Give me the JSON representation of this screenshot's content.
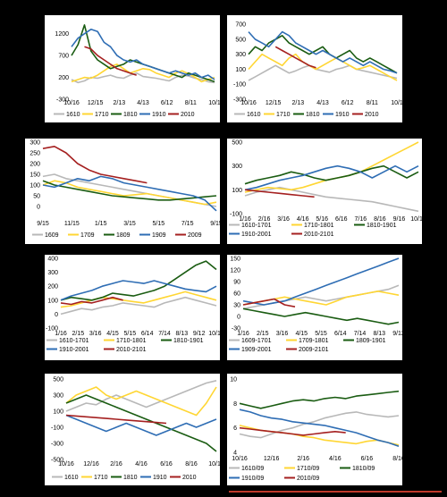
{
  "colors": {
    "gray": "#b8b8b8",
    "yellow": "#ffd633",
    "green": "#1a5c12",
    "blue": "#2e6db4",
    "red": "#a52020"
  },
  "chart_data": [
    {
      "type": "line",
      "ylim": [
        -300,
        1500
      ],
      "yticks": [
        "-300",
        "200",
        "700",
        "1200"
      ],
      "xticks": [
        "10/16",
        "12/15",
        "2/13",
        "4/13",
        "6/12",
        "8/11",
        "10/1"
      ],
      "series": [
        {
          "name": "1610",
          "color": "gray",
          "values": [
            150,
            80,
            120,
            200,
            180,
            220,
            250,
            200,
            180,
            250,
            300,
            220,
            200,
            180,
            150,
            120,
            200,
            250,
            230,
            180,
            150,
            100,
            80
          ]
        },
        {
          "name": "1710",
          "color": "yellow",
          "values": [
            100,
            150,
            200,
            180,
            250,
            350,
            450,
            500,
            400,
            300,
            350,
            400,
            380,
            300,
            250,
            200,
            300,
            350,
            280,
            200,
            100,
            150,
            200
          ]
        },
        {
          "name": "1810",
          "color": "green",
          "values": [
            700,
            950,
            1400,
            800,
            600,
            500,
            400,
            450,
            500,
            600,
            550,
            500,
            450,
            400,
            350,
            300,
            250,
            200,
            300,
            250,
            200,
            150,
            100
          ]
        },
        {
          "name": "1910",
          "color": "blue",
          "values": [
            900,
            1100,
            1200,
            1300,
            1250,
            1000,
            900,
            700,
            600,
            550,
            600,
            500,
            450,
            400,
            350,
            300,
            350,
            300,
            250,
            300,
            200,
            250,
            150
          ]
        },
        {
          "name": "2010",
          "color": "red",
          "values": [
            null,
            null,
            900,
            850,
            700,
            600,
            500,
            400,
            350,
            300,
            250,
            null,
            null,
            null,
            null,
            null,
            null,
            null,
            null,
            null,
            null,
            null,
            null
          ]
        }
      ]
    },
    {
      "type": "line",
      "ylim": [
        -300,
        750
      ],
      "yticks": [
        "-300",
        "-100",
        "100",
        "300",
        "500",
        "700"
      ],
      "xticks": [
        "10/16",
        "12/15",
        "2/13",
        "4/13",
        "6/12",
        "8/11",
        "10/1"
      ],
      "series": [
        {
          "name": "1610",
          "color": "gray",
          "values": [
            -50,
            0,
            50,
            100,
            150,
            100,
            50,
            80,
            120,
            150,
            100,
            80,
            60,
            100,
            120,
            150,
            100,
            80,
            60,
            40,
            20,
            0,
            -20
          ]
        },
        {
          "name": "1710",
          "color": "yellow",
          "values": [
            100,
            200,
            300,
            250,
            200,
            150,
            250,
            300,
            200,
            150,
            100,
            150,
            200,
            250,
            200,
            150,
            100,
            120,
            150,
            100,
            50,
            0,
            -50
          ]
        },
        {
          "name": "1810",
          "color": "green",
          "values": [
            300,
            400,
            350,
            450,
            500,
            550,
            450,
            400,
            350,
            300,
            350,
            400,
            300,
            250,
            300,
            350,
            250,
            200,
            250,
            200,
            150,
            100,
            50
          ]
        },
        {
          "name": "1910",
          "color": "blue",
          "values": [
            600,
            500,
            450,
            400,
            500,
            600,
            550,
            450,
            400,
            350,
            300,
            350,
            300,
            250,
            200,
            250,
            200,
            150,
            200,
            150,
            100,
            80,
            50
          ]
        },
        {
          "name": "2010",
          "color": "red",
          "values": [
            null,
            null,
            null,
            null,
            400,
            350,
            300,
            250,
            200,
            150,
            120,
            null,
            null,
            null,
            null,
            null,
            null,
            null,
            null,
            null,
            null,
            null,
            null
          ]
        }
      ]
    },
    {
      "type": "line",
      "ylim": [
        -50,
        300
      ],
      "yticks": [
        "0",
        "50",
        "100",
        "150",
        "200",
        "250",
        "300"
      ],
      "xticks": [
        "9/15",
        "11/15",
        "1/15",
        "3/15",
        "5/15",
        "7/15",
        "9/15"
      ],
      "series": [
        {
          "name": "1609",
          "color": "gray",
          "values": [
            140,
            150,
            130,
            120,
            110,
            100,
            90,
            80,
            70,
            60,
            50,
            40,
            30,
            20,
            10,
            0
          ]
        },
        {
          "name": "1709",
          "color": "yellow",
          "values": [
            100,
            120,
            110,
            90,
            80,
            70,
            60,
            50,
            55,
            60,
            50,
            40,
            30,
            20,
            10,
            20
          ]
        },
        {
          "name": "1809",
          "color": "green",
          "values": [
            120,
            100,
            90,
            80,
            70,
            60,
            50,
            45,
            40,
            35,
            30,
            30,
            35,
            40,
            45,
            50
          ]
        },
        {
          "name": "1909",
          "color": "blue",
          "values": [
            100,
            90,
            110,
            130,
            120,
            140,
            130,
            110,
            100,
            90,
            80,
            70,
            60,
            50,
            30,
            -20
          ]
        },
        {
          "name": "2009",
          "color": "red",
          "values": [
            270,
            280,
            250,
            200,
            170,
            150,
            140,
            130,
            120,
            110,
            null,
            null,
            null,
            null,
            null,
            null
          ]
        }
      ]
    },
    {
      "type": "line",
      "ylim": [
        -100,
        500
      ],
      "yticks": [
        "-100",
        "100",
        "300",
        "500"
      ],
      "xticks": [
        "1/16",
        "2/16",
        "3/16",
        "4/16",
        "5/16",
        "6/16",
        "7/16",
        "8/16",
        "9/16",
        "10/16"
      ],
      "series": [
        {
          "name": "1610-1701",
          "color": "gray",
          "values": [
            50,
            80,
            100,
            120,
            100,
            80,
            60,
            40,
            30,
            20,
            10,
            0,
            -20,
            -40,
            -60,
            -80
          ]
        },
        {
          "name": "1710-1801",
          "color": "yellow",
          "values": [
            80,
            100,
            120,
            110,
            100,
            120,
            150,
            180,
            200,
            220,
            250,
            300,
            350,
            400,
            450,
            500
          ]
        },
        {
          "name": "1810-1901",
          "color": "green",
          "values": [
            150,
            180,
            200,
            220,
            250,
            230,
            200,
            180,
            200,
            220,
            250,
            280,
            300,
            250,
            200,
            250
          ]
        },
        {
          "name": "1910-2001",
          "color": "blue",
          "values": [
            100,
            120,
            150,
            180,
            200,
            220,
            250,
            280,
            300,
            280,
            250,
            200,
            250,
            300,
            250,
            300
          ]
        },
        {
          "name": "2010-2101",
          "color": "red",
          "values": [
            100,
            90,
            80,
            70,
            60,
            50,
            40,
            null,
            null,
            null,
            null,
            null,
            null,
            null,
            null,
            null
          ]
        }
      ]
    },
    {
      "type": "line",
      "ylim": [
        -100,
        400
      ],
      "yticks": [
        "-100",
        "0",
        "100",
        "200",
        "300",
        "400"
      ],
      "xticks": [
        "1/16",
        "2/15",
        "3/16",
        "4/15",
        "5/15",
        "6/14",
        "7/14",
        "8/13",
        "9/12",
        "10/12"
      ],
      "series": [
        {
          "name": "1610-1701",
          "color": "gray",
          "values": [
            0,
            20,
            40,
            30,
            50,
            60,
            80,
            70,
            60,
            50,
            80,
            100,
            120,
            100,
            80,
            60
          ]
        },
        {
          "name": "1710-1801",
          "color": "yellow",
          "values": [
            50,
            60,
            80,
            100,
            120,
            110,
            100,
            90,
            80,
            100,
            120,
            140,
            160,
            140,
            120,
            100
          ]
        },
        {
          "name": "1810-1901",
          "color": "green",
          "values": [
            100,
            120,
            110,
            100,
            120,
            150,
            140,
            130,
            150,
            170,
            200,
            250,
            300,
            350,
            380,
            320
          ]
        },
        {
          "name": "1910-2001",
          "color": "blue",
          "values": [
            100,
            130,
            150,
            170,
            200,
            220,
            240,
            230,
            220,
            240,
            220,
            200,
            180,
            170,
            160,
            200
          ]
        },
        {
          "name": "2010-2101",
          "color": "red",
          "values": [
            80,
            70,
            90,
            80,
            100,
            120,
            100,
            null,
            null,
            null,
            null,
            null,
            null,
            null,
            null,
            null
          ]
        }
      ]
    },
    {
      "type": "line",
      "ylim": [
        -30,
        150
      ],
      "yticks": [
        "-30",
        "0",
        "30",
        "60",
        "90",
        "120",
        "150"
      ],
      "xticks": [
        "1/16",
        "2/15",
        "3/16",
        "4/15",
        "5/15",
        "6/14",
        "7/14",
        "8/13",
        "9/12"
      ],
      "series": [
        {
          "name": "1609-1701",
          "color": "gray",
          "values": [
            20,
            25,
            30,
            35,
            40,
            45,
            50,
            45,
            40,
            45,
            50,
            55,
            60,
            65,
            70,
            80
          ]
        },
        {
          "name": "1709-1801",
          "color": "yellow",
          "values": [
            30,
            35,
            40,
            45,
            50,
            45,
            40,
            35,
            30,
            40,
            50,
            55,
            60,
            65,
            60,
            55
          ]
        },
        {
          "name": "1809-1901",
          "color": "green",
          "values": [
            20,
            15,
            10,
            5,
            0,
            5,
            10,
            5,
            0,
            -5,
            -10,
            -5,
            -10,
            -15,
            -20,
            -15
          ]
        },
        {
          "name": "1909-2001",
          "color": "blue",
          "values": [
            40,
            35,
            30,
            35,
            40,
            50,
            60,
            70,
            80,
            90,
            100,
            110,
            120,
            130,
            140,
            150
          ]
        },
        {
          "name": "2009-2101",
          "color": "red",
          "values": [
            30,
            35,
            40,
            45,
            30,
            25,
            null,
            null,
            null,
            null,
            null,
            null,
            null,
            null,
            null,
            null
          ]
        }
      ]
    },
    {
      "type": "line",
      "ylim": [
        -500,
        500
      ],
      "yticks": [
        "-500",
        "-300",
        "-100",
        "100",
        "300",
        "500"
      ],
      "xticks": [
        "10/16",
        "12/16",
        "2/16",
        "4/16",
        "6/16",
        "8/16",
        "10/16"
      ],
      "series": [
        {
          "name": "1610",
          "color": "gray",
          "values": [
            100,
            150,
            200,
            180,
            250,
            300,
            250,
            200,
            150,
            200,
            250,
            300,
            350,
            400,
            450,
            480
          ]
        },
        {
          "name": "1710",
          "color": "yellow",
          "values": [
            200,
            300,
            350,
            400,
            300,
            250,
            300,
            350,
            300,
            250,
            200,
            150,
            100,
            50,
            200,
            400
          ]
        },
        {
          "name": "1810",
          "color": "green",
          "values": [
            200,
            250,
            300,
            250,
            200,
            150,
            100,
            50,
            0,
            -50,
            -100,
            -150,
            -200,
            -250,
            -300,
            -400
          ]
        },
        {
          "name": "1910",
          "color": "blue",
          "values": [
            50,
            0,
            -50,
            -100,
            -150,
            -100,
            -50,
            -100,
            -150,
            -200,
            -150,
            -100,
            -50,
            -100,
            -50,
            0
          ]
        },
        {
          "name": "2010",
          "color": "red",
          "values": [
            50,
            40,
            30,
            20,
            10,
            0,
            -10,
            -20,
            -30,
            -40,
            -50,
            null,
            null,
            null,
            null,
            null
          ]
        }
      ]
    },
    {
      "type": "line",
      "ylim": [
        4,
        10
      ],
      "yticks": [
        "4",
        "6",
        "8",
        "10"
      ],
      "xticks": [
        "10/16",
        "12/16",
        "2/16",
        "4/16",
        "6/16",
        "8/16"
      ],
      "series": [
        {
          "name": "1610/09",
          "color": "gray",
          "values": [
            5.5,
            5.3,
            5.2,
            5.5,
            5.8,
            6.0,
            6.3,
            6.5,
            6.8,
            7.0,
            7.2,
            7.3,
            7.1,
            7.0,
            6.9,
            7.0
          ]
        },
        {
          "name": "1710/09",
          "color": "yellow",
          "values": [
            6.2,
            6.0,
            5.8,
            5.7,
            5.6,
            5.5,
            5.3,
            5.2,
            5.0,
            4.9,
            4.8,
            4.7,
            4.9,
            5.0,
            4.8,
            4.6
          ]
        },
        {
          "name": "1810/09",
          "color": "green",
          "values": [
            8.0,
            7.8,
            7.6,
            7.8,
            8.0,
            8.2,
            8.3,
            8.2,
            8.4,
            8.5,
            8.4,
            8.6,
            8.7,
            8.8,
            8.9,
            9.0
          ]
        },
        {
          "name": "1910/09",
          "color": "blue",
          "values": [
            7.5,
            7.3,
            7.0,
            6.8,
            6.7,
            6.5,
            6.4,
            6.3,
            6.2,
            6.0,
            5.8,
            5.6,
            5.3,
            5.0,
            4.8,
            4.5
          ]
        },
        {
          "name": "2010/09",
          "color": "red",
          "values": [
            6.0,
            5.9,
            5.8,
            5.7,
            5.6,
            5.5,
            5.4,
            5.5,
            5.6,
            5.7,
            5.6,
            null,
            null,
            null,
            null,
            null
          ]
        }
      ]
    }
  ]
}
